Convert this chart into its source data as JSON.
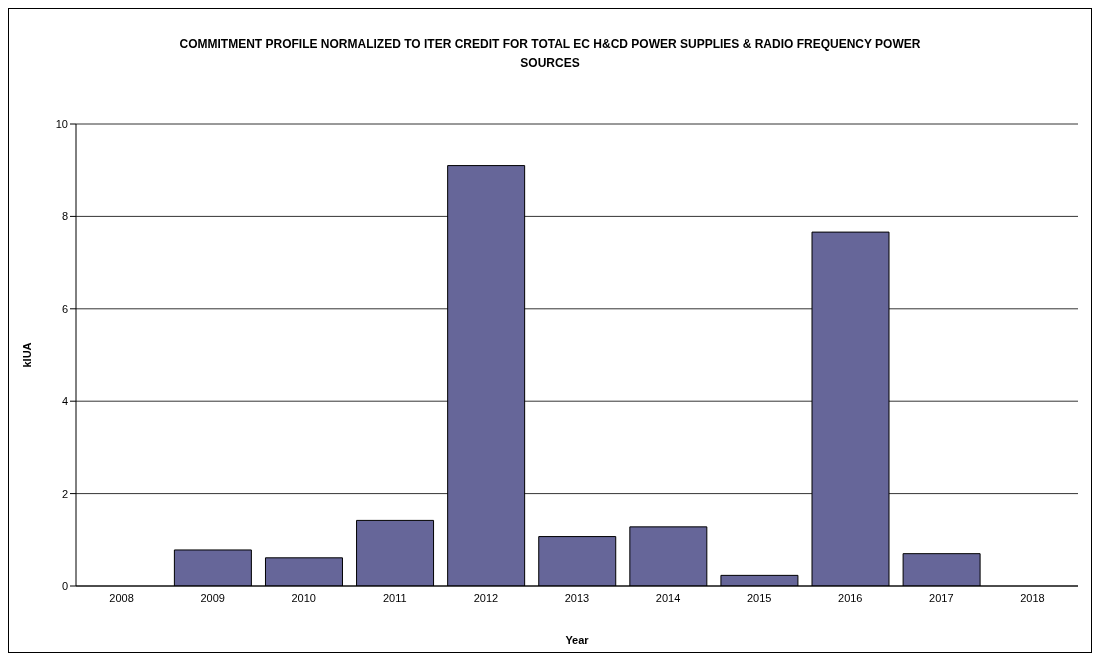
{
  "chart_data": {
    "type": "bar",
    "title": "COMMITMENT PROFILE NORMALIZED TO ITER CREDIT FOR TOTAL EC H&CD POWER SUPPLIES & RADIO FREQUENCY POWER SOURCES",
    "xlabel": "Year",
    "ylabel": "kIUA",
    "categories": [
      "2008",
      "2009",
      "2010",
      "2011",
      "2012",
      "2013",
      "2014",
      "2015",
      "2016",
      "2017",
      "2018"
    ],
    "values": [
      0,
      0.78,
      0.61,
      1.42,
      9.1,
      1.07,
      1.28,
      0.23,
      7.66,
      0.7,
      0
    ],
    "color": "#666699",
    "ylim": [
      0,
      10
    ],
    "yticks": [
      0,
      2,
      4,
      6,
      8,
      10
    ],
    "grid": "y"
  }
}
